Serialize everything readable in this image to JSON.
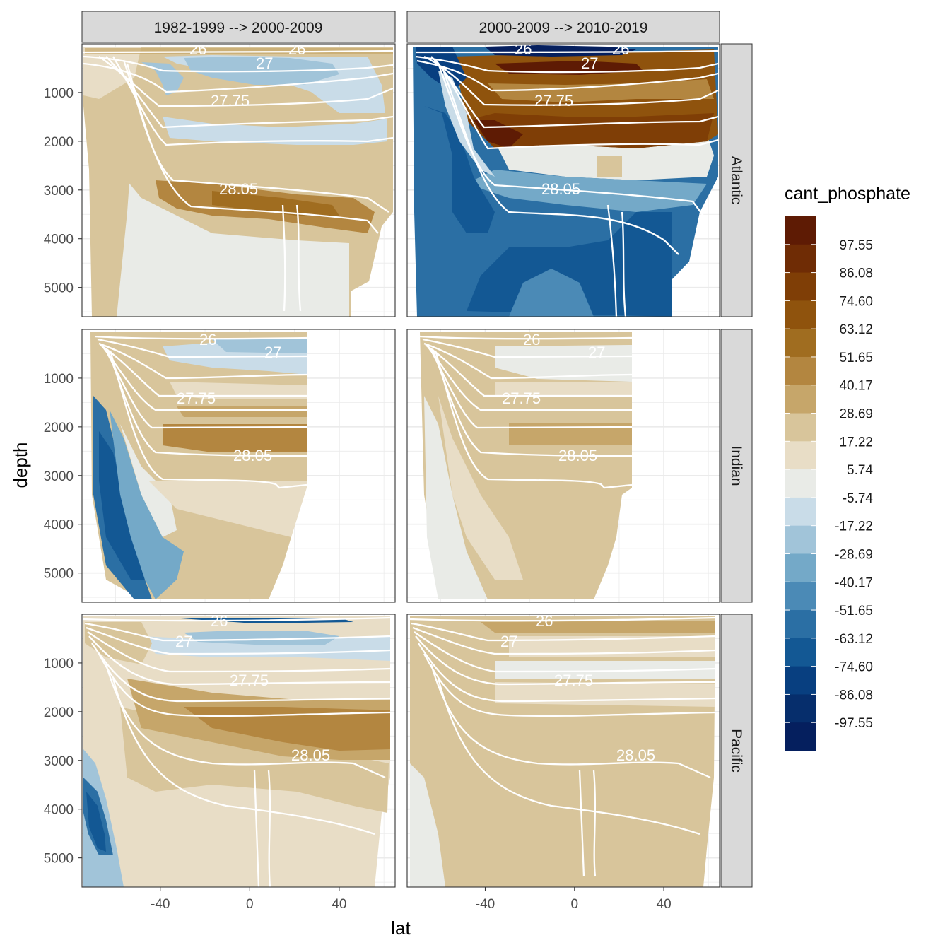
{
  "chart_data": {
    "type": "heatmap",
    "subtype": "filled contour section plots faceted by period (columns) and ocean basin (rows), with white isopycnal contour lines",
    "xlabel": "lat",
    "ylabel": "depth",
    "x_ticks": [
      "-40",
      "0",
      "40"
    ],
    "x_tick_values": [
      -40,
      0,
      40
    ],
    "xlim": [
      -75,
      65
    ],
    "y_ticks": [
      "1000",
      "2000",
      "3000",
      "4000",
      "5000"
    ],
    "y_tick_values": [
      1000,
      2000,
      3000,
      4000,
      5000
    ],
    "ylim": [
      5600,
      0
    ],
    "y_reversed": true,
    "grid": true,
    "facet_columns": [
      "1982-1999 --> 2000-2009",
      "2000-2009 --> 2010-2019"
    ],
    "facet_rows": [
      "Atlantic",
      "Indian",
      "Pacific"
    ],
    "legend": {
      "title": "cant_phosphate",
      "position": "right",
      "labels": [
        "97.55",
        "86.08",
        "74.60",
        "63.12",
        "51.65",
        "40.17",
        "28.69",
        "17.22",
        "5.74",
        "-5.74",
        "-17.22",
        "-28.69",
        "-40.17",
        "-51.65",
        "-63.12",
        "-74.60",
        "-86.08",
        "-97.55"
      ],
      "colors": [
        "#5e1b04",
        "#6f2c05",
        "#7f3e06",
        "#8f530d",
        "#a06d20",
        "#b38640",
        "#c6a66a",
        "#d8c59b",
        "#e8ddc6",
        "#e9ebe7",
        "#c9dce8",
        "#a1c4d9",
        "#74a9c8",
        "#4b8ab6",
        "#2b6fa4",
        "#135894",
        "#083f80",
        "#062e6c",
        "#051f5e"
      ]
    },
    "contour_levels": [
      "26",
      "27",
      "27.75",
      "28.05"
    ],
    "panels": [
      {
        "row": "Atlantic",
        "col": "1982-1999 --> 2000-2009",
        "labels": [
          "26",
          "27",
          "26",
          "27.75",
          "28.05"
        ]
      },
      {
        "row": "Atlantic",
        "col": "2000-2009 --> 2010-2019",
        "labels": [
          "26",
          "27",
          "26",
          "27.75",
          "28.05"
        ]
      },
      {
        "row": "Indian",
        "col": "1982-1999 --> 2000-2009",
        "labels": [
          "26",
          "27",
          "27.75",
          "28.05"
        ]
      },
      {
        "row": "Indian",
        "col": "2000-2009 --> 2010-2019",
        "labels": [
          "26",
          "27",
          "27.75",
          "28.05"
        ]
      },
      {
        "row": "Pacific",
        "col": "1982-1999 --> 2000-2009",
        "labels": [
          "26",
          "27",
          "27.75",
          "28.05"
        ]
      },
      {
        "row": "Pacific",
        "col": "2000-2009 --> 2010-2019",
        "labels": [
          "26",
          "27",
          "27.75",
          "28.05"
        ]
      }
    ]
  }
}
